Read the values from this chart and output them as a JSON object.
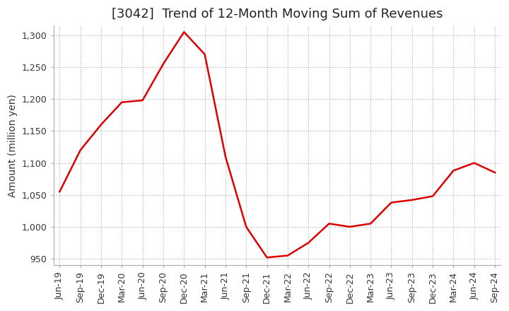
{
  "title": "[3042]  Trend of 12-Month Moving Sum of Revenues",
  "ylabel": "Amount (million yen)",
  "background_color": "#ffffff",
  "grid_color": "#aaaaaa",
  "line_color": "#dd0000",
  "x_labels": [
    "Jun-19",
    "Sep-19",
    "Dec-19",
    "Mar-20",
    "Jun-20",
    "Sep-20",
    "Dec-20",
    "Mar-21",
    "Jun-21",
    "Sep-21",
    "Dec-21",
    "Mar-22",
    "Jun-22",
    "Sep-22",
    "Dec-22",
    "Mar-23",
    "Jun-23",
    "Sep-23",
    "Dec-23",
    "Mar-24",
    "Jun-24",
    "Sep-24"
  ],
  "values": [
    1055,
    1120,
    1160,
    1195,
    1198,
    1255,
    1305,
    1270,
    1110,
    1000,
    952,
    955,
    975,
    1005,
    1000,
    1005,
    1038,
    1042,
    1048,
    1088,
    1100,
    1085
  ],
  "ylim": [
    940,
    1315
  ],
  "yticks": [
    950,
    1000,
    1050,
    1100,
    1150,
    1200,
    1250,
    1300
  ],
  "title_fontsize": 13,
  "axis_fontsize": 10,
  "tick_fontsize": 9
}
